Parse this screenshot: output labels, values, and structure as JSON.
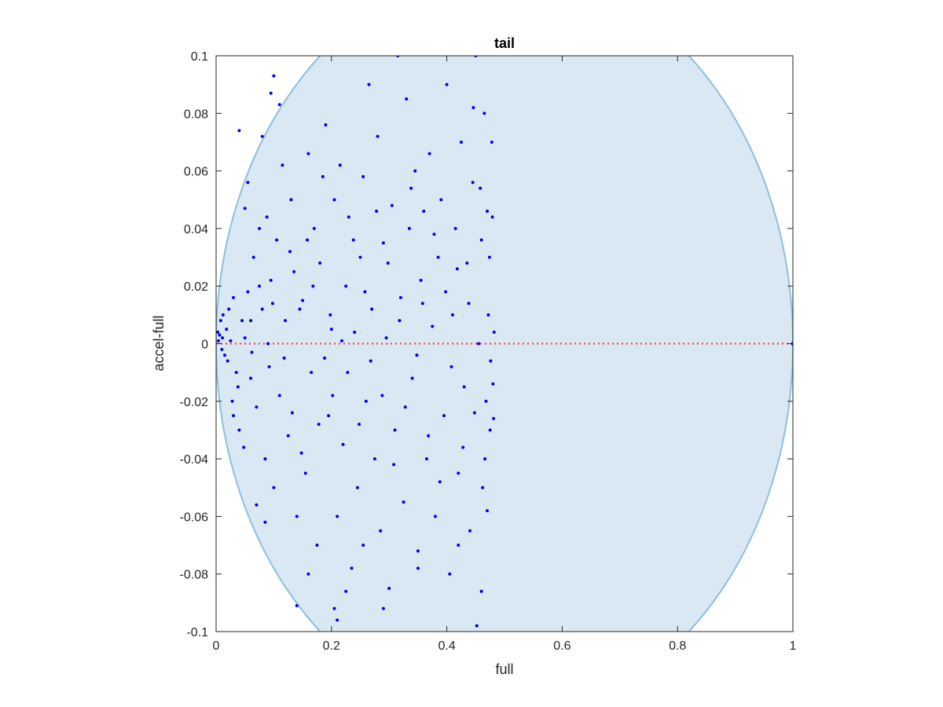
{
  "chart_data": {
    "type": "scatter",
    "title": "tail",
    "xlabel": "full",
    "ylabel": "accel-full",
    "xlim": [
      0,
      1
    ],
    "ylim": [
      -0.1,
      0.1
    ],
    "x_ticks": [
      "0",
      "0.2",
      "0.4",
      "0.6",
      "0.8",
      "1"
    ],
    "x_tick_values": [
      0,
      0.2,
      0.4,
      0.6,
      0.8,
      1
    ],
    "y_ticks": [
      "-0.1",
      "-0.08",
      "-0.06",
      "-0.04",
      "-0.02",
      "0",
      "0.02",
      "0.04",
      "0.06",
      "0.08",
      "0.1"
    ],
    "y_tick_values": [
      -0.1,
      -0.08,
      -0.06,
      -0.04,
      -0.02,
      0,
      0.02,
      0.04,
      0.06,
      0.08,
      0.1
    ],
    "grid": false,
    "colors": {
      "region_fill": "#d9e8f3",
      "region_edge": "#8cbfe0",
      "points": "#0000ee",
      "reference_line": "#ff3030",
      "axes": "#262626"
    },
    "region": {
      "shape": "ellipse",
      "center": [
        0.5,
        0
      ],
      "x_radius": 0.5,
      "y_radius": 0.13
    },
    "reference_line": {
      "y": 0,
      "x_range": [
        0,
        1
      ],
      "style": "dotted"
    },
    "series": [
      {
        "points": [
          [
            0.003,
            0.004
          ],
          [
            0.006,
            0.003
          ],
          [
            0.008,
            0.008
          ],
          [
            0.004,
            0.001
          ],
          [
            0.011,
            0.002
          ],
          [
            0.015,
            -0.004
          ],
          [
            0.012,
            0.01
          ],
          [
            0.022,
            0.012
          ],
          [
            0.02,
            -0.006
          ],
          [
            0.025,
            0.001
          ],
          [
            0.01,
            -0.002
          ],
          [
            0.018,
            0.005
          ],
          [
            0.03,
            0.016
          ],
          [
            0.035,
            -0.01
          ],
          [
            0.028,
            -0.02
          ],
          [
            0.045,
            0.008
          ],
          [
            0.04,
            -0.03
          ],
          [
            0.05,
            0.002
          ],
          [
            0.055,
            0.018
          ],
          [
            0.06,
            -0.012
          ],
          [
            0.048,
            -0.036
          ],
          [
            0.065,
            0.03
          ],
          [
            0.07,
            -0.022
          ],
          [
            0.08,
            0.012
          ],
          [
            0.075,
            0.04
          ],
          [
            0.085,
            -0.04
          ],
          [
            0.09,
            0.0
          ],
          [
            0.095,
            0.022
          ],
          [
            0.1,
            -0.05
          ],
          [
            0.105,
            0.036
          ],
          [
            0.11,
            -0.018
          ],
          [
            0.115,
            0.062
          ],
          [
            0.12,
            0.008
          ],
          [
            0.125,
            -0.032
          ],
          [
            0.13,
            0.05
          ],
          [
            0.135,
            0.025
          ],
          [
            0.14,
            -0.06
          ],
          [
            0.15,
            0.015
          ],
          [
            0.155,
            -0.045
          ],
          [
            0.16,
            0.066
          ],
          [
            0.165,
            -0.01
          ],
          [
            0.17,
            0.04
          ],
          [
            0.175,
            -0.07
          ],
          [
            0.18,
            0.028
          ],
          [
            0.185,
            0.058
          ],
          [
            0.19,
            0.076
          ],
          [
            0.195,
            -0.025
          ],
          [
            0.2,
            0.005
          ],
          [
            0.205,
            0.05
          ],
          [
            0.21,
            -0.06
          ],
          [
            0.215,
            0.062
          ],
          [
            0.22,
            -0.035
          ],
          [
            0.225,
            0.02
          ],
          [
            0.23,
            0.044
          ],
          [
            0.235,
            -0.078
          ],
          [
            0.24,
            0.004
          ],
          [
            0.245,
            -0.05
          ],
          [
            0.25,
            0.03
          ],
          [
            0.255,
            0.058
          ],
          [
            0.26,
            -0.02
          ],
          [
            0.265,
            0.09
          ],
          [
            0.27,
            0.012
          ],
          [
            0.275,
            -0.04
          ],
          [
            0.28,
            0.072
          ],
          [
            0.285,
            -0.065
          ],
          [
            0.29,
            0.035
          ],
          [
            0.295,
            0.002
          ],
          [
            0.3,
            -0.085
          ],
          [
            0.305,
            0.048
          ],
          [
            0.31,
            -0.03
          ],
          [
            0.315,
            0.1
          ],
          [
            0.32,
            0.016
          ],
          [
            0.325,
            -0.055
          ],
          [
            0.33,
            0.085
          ],
          [
            0.335,
            0.04
          ],
          [
            0.34,
            -0.012
          ],
          [
            0.345,
            0.06
          ],
          [
            0.35,
            -0.072
          ],
          [
            0.355,
            0.022
          ],
          [
            0.36,
            0.046
          ],
          [
            0.365,
            -0.04
          ],
          [
            0.37,
            0.066
          ],
          [
            0.375,
            0.006
          ],
          [
            0.38,
            -0.06
          ],
          [
            0.385,
            0.03
          ],
          [
            0.39,
            0.05
          ],
          [
            0.395,
            -0.025
          ],
          [
            0.4,
            0.09
          ],
          [
            0.405,
            -0.08
          ],
          [
            0.41,
            0.01
          ],
          [
            0.415,
            0.04
          ],
          [
            0.42,
            -0.045
          ],
          [
            0.425,
            0.07
          ],
          [
            0.43,
            -0.015
          ],
          [
            0.435,
            0.028
          ],
          [
            0.44,
            -0.065
          ],
          [
            0.445,
            0.056
          ],
          [
            0.45,
            0.1
          ],
          [
            0.452,
            -0.098
          ],
          [
            0.455,
            0.0
          ],
          [
            0.46,
            0.036
          ],
          [
            0.462,
            -0.05
          ],
          [
            0.465,
            0.08
          ],
          [
            0.468,
            -0.02
          ],
          [
            0.47,
            0.046
          ],
          [
            0.472,
            0.01
          ],
          [
            0.475,
            -0.03
          ],
          [
            0.478,
            0.07
          ],
          [
            0.48,
            -0.014
          ],
          [
            0.482,
            0.004
          ],
          [
            0.04,
            0.074
          ],
          [
            0.08,
            0.072
          ],
          [
            0.1,
            0.093
          ],
          [
            0.095,
            0.087
          ],
          [
            0.11,
            0.083
          ],
          [
            0.05,
            0.047
          ],
          [
            0.055,
            0.056
          ],
          [
            0.07,
            -0.056
          ],
          [
            0.085,
            -0.062
          ],
          [
            0.14,
            -0.091
          ],
          [
            0.16,
            -0.08
          ],
          [
            0.205,
            -0.092
          ],
          [
            0.21,
            -0.096
          ],
          [
            0.225,
            -0.086
          ],
          [
            0.255,
            -0.07
          ],
          [
            0.29,
            -0.092
          ],
          [
            0.35,
            -0.078
          ],
          [
            0.42,
            -0.07
          ],
          [
            0.46,
            -0.086
          ],
          [
            0.47,
            -0.058
          ],
          [
            0.03,
            -0.025
          ],
          [
            0.038,
            -0.015
          ],
          [
            0.06,
            0.008
          ],
          [
            0.062,
            -0.003
          ],
          [
            0.075,
            0.02
          ],
          [
            0.088,
            0.044
          ],
          [
            0.092,
            -0.008
          ],
          [
            0.098,
            0.014
          ],
          [
            0.118,
            -0.005
          ],
          [
            0.128,
            0.032
          ],
          [
            0.132,
            -0.024
          ],
          [
            0.145,
            0.012
          ],
          [
            0.148,
            -0.038
          ],
          [
            0.158,
            0.036
          ],
          [
            0.168,
            0.02
          ],
          [
            0.178,
            -0.028
          ],
          [
            0.188,
            -0.005
          ],
          [
            0.198,
            0.01
          ],
          [
            0.202,
            -0.018
          ],
          [
            0.218,
            0.001
          ],
          [
            0.228,
            -0.01
          ],
          [
            0.238,
            0.036
          ],
          [
            0.248,
            -0.028
          ],
          [
            0.258,
            0.018
          ],
          [
            0.268,
            -0.006
          ],
          [
            0.278,
            0.046
          ],
          [
            0.288,
            -0.018
          ],
          [
            0.298,
            0.028
          ],
          [
            0.308,
            -0.042
          ],
          [
            0.318,
            0.008
          ],
          [
            0.328,
            -0.022
          ],
          [
            0.338,
            0.054
          ],
          [
            0.348,
            -0.004
          ],
          [
            0.358,
            0.014
          ],
          [
            0.368,
            -0.032
          ],
          [
            0.378,
            0.038
          ],
          [
            0.388,
            -0.048
          ],
          [
            0.398,
            0.018
          ],
          [
            0.408,
            -0.008
          ],
          [
            0.418,
            0.026
          ],
          [
            0.428,
            -0.036
          ],
          [
            0.438,
            0.014
          ],
          [
            0.448,
            -0.024
          ],
          [
            0.458,
            0.054
          ],
          [
            0.466,
            -0.04
          ],
          [
            0.474,
            0.03
          ],
          [
            0.476,
            -0.006
          ],
          [
            0.479,
            0.044
          ],
          [
            0.481,
            -0.026
          ],
          [
            0.446,
            0.082
          ]
        ]
      }
    ]
  }
}
